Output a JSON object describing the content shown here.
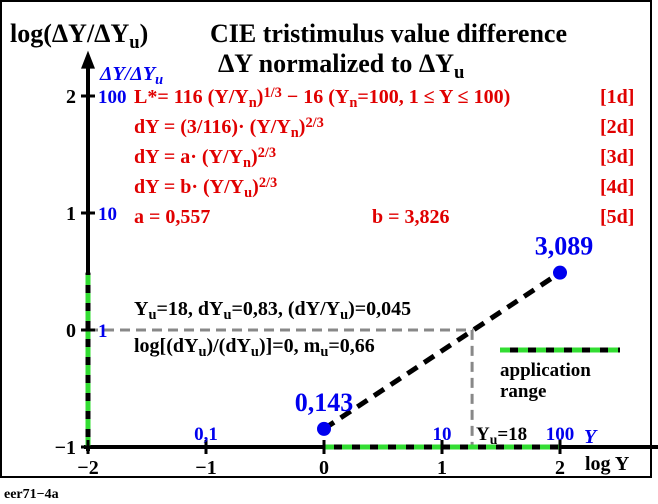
{
  "chart_data": {
    "type": "line",
    "y_axis_title": [
      "log(ΔY/ΔY",
      "u",
      ")"
    ],
    "title": "CIE tristimulus value difference",
    "subtitle": [
      "ΔY normalized to ΔY",
      "u"
    ],
    "y2_axis_title": [
      "ΔY/ΔY",
      "u"
    ],
    "x_axis_title": "log Y",
    "x2_axis_title": "Y",
    "formulas": [
      {
        "parts": [
          "L*= 116 (Y/Y",
          "n",
          ")",
          "1/3",
          " − 16  (Y",
          "n",
          "=100, 1 ≤ Y ≤ 100)"
        ],
        "tag": "[1d]"
      },
      {
        "parts": [
          "dY = (3/116)",
          "·",
          " (Y/Y",
          "n",
          ")",
          "2/3"
        ],
        "tag": "[2d]"
      },
      {
        "parts": [
          "dY = a",
          "·",
          " (Y/Y",
          "n",
          ")",
          "2/3"
        ],
        "tag": "[3d]"
      },
      {
        "parts": [
          "dY = b",
          "·",
          " (Y/Y",
          "u",
          ")",
          "2/3"
        ],
        "tag": "[4d]"
      },
      {
        "parts": [
          "a = 0,557"
        ],
        "extra": "b = 3,826",
        "tag": "[5d]"
      }
    ],
    "notes": [
      [
        "Y",
        "u",
        "=18, dY",
        "u",
        "=0,83, (dY/Y",
        "u",
        ")=0,045"
      ],
      [
        "log[(dY",
        "u",
        ")/(dY",
        "u",
        ")]=0, m",
        "u",
        "=0,66"
      ]
    ],
    "legend": [
      "application",
      "range"
    ],
    "reference_label": [
      "Y",
      "u",
      "=18"
    ],
    "reference": {
      "x": 1.255,
      "y": 0
    },
    "application_range": {
      "x": [
        0,
        2
      ],
      "y": [
        -1,
        0.49
      ]
    },
    "x": [
      0,
      2
    ],
    "series": [
      {
        "values": [
          -0.845,
          0.49
        ],
        "value_labels": [
          "0,143",
          "3,089"
        ],
        "color": "#0000ee"
      }
    ],
    "xlim": [
      -2,
      2.6
    ],
    "ylim": [
      -1,
      2.2
    ],
    "xticks": [
      {
        "value": -2,
        "label": "−2"
      },
      {
        "value": -1,
        "label": "−1"
      },
      0,
      1,
      2
    ],
    "yticks": [
      {
        "value": -1,
        "label": "−1"
      },
      0,
      1,
      2
    ],
    "x2ticks": [
      {
        "value": -1,
        "label": "0,1"
      },
      {
        "value": 1,
        "label": "10"
      },
      {
        "value": 2,
        "label": "100"
      }
    ],
    "y2ticks": [
      {
        "value": 0,
        "label": "1"
      },
      {
        "value": 1,
        "label": "10"
      },
      {
        "value": 2,
        "label": "100"
      }
    ],
    "footer": "eer71−4a"
  }
}
